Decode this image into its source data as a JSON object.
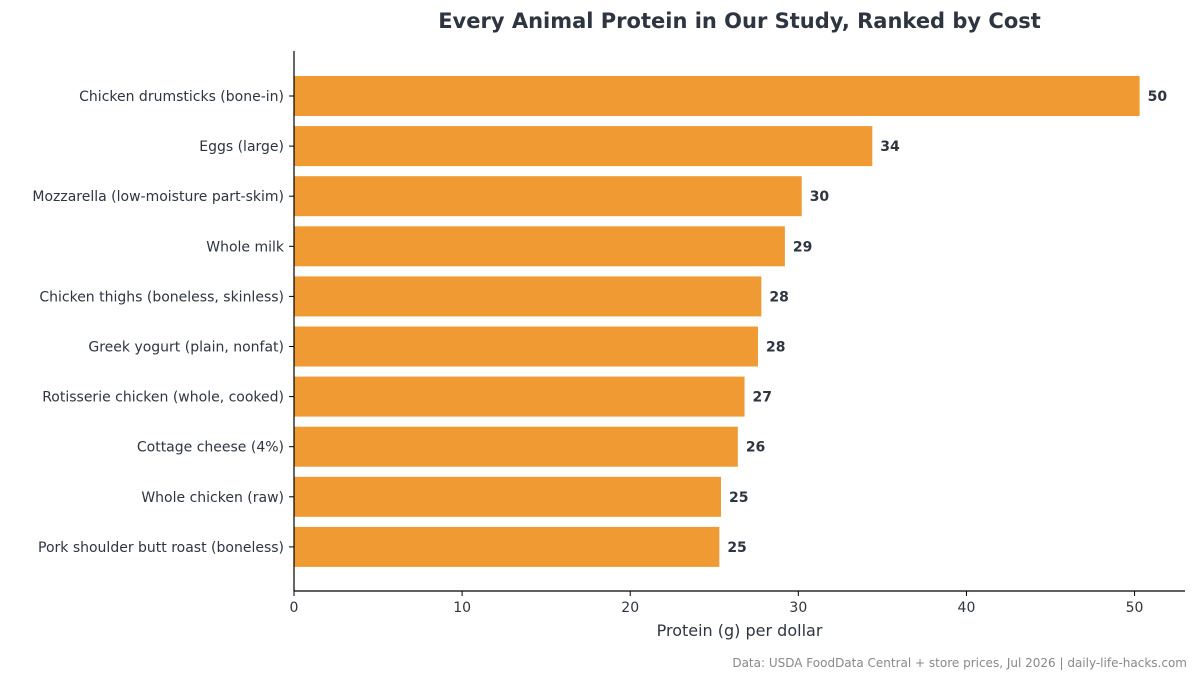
{
  "chart_data": {
    "type": "bar",
    "orientation": "horizontal",
    "title": "Every Animal Protein in Our Study, Ranked by Cost",
    "xlabel": "Protein (g) per dollar",
    "ylabel": "",
    "categories": [
      "Chicken drumsticks (bone-in)",
      "Eggs (large)",
      "Mozzarella (low-moisture part-skim)",
      "Whole milk",
      "Chicken thighs (boneless, skinless)",
      "Greek yogurt (plain, nonfat)",
      "Rotisserie chicken (whole, cooked)",
      "Cottage cheese (4%)",
      "Whole chicken (raw)",
      "Pork shoulder butt roast (boneless)"
    ],
    "values": [
      50.3,
      34.4,
      30.2,
      29.2,
      27.8,
      27.6,
      26.8,
      26.4,
      25.4,
      25.3
    ],
    "value_labels": [
      "50",
      "34",
      "30",
      "29",
      "28",
      "28",
      "27",
      "26",
      "25",
      "25"
    ],
    "xlim": [
      0,
      53
    ],
    "xticks": [
      0,
      10,
      20,
      30,
      40,
      50
    ],
    "grid": false,
    "legend": "none",
    "bar_color": "#f09a33",
    "source": "Data: USDA FoodData Central + store prices, Jul 2026 | daily-life-hacks.com"
  }
}
